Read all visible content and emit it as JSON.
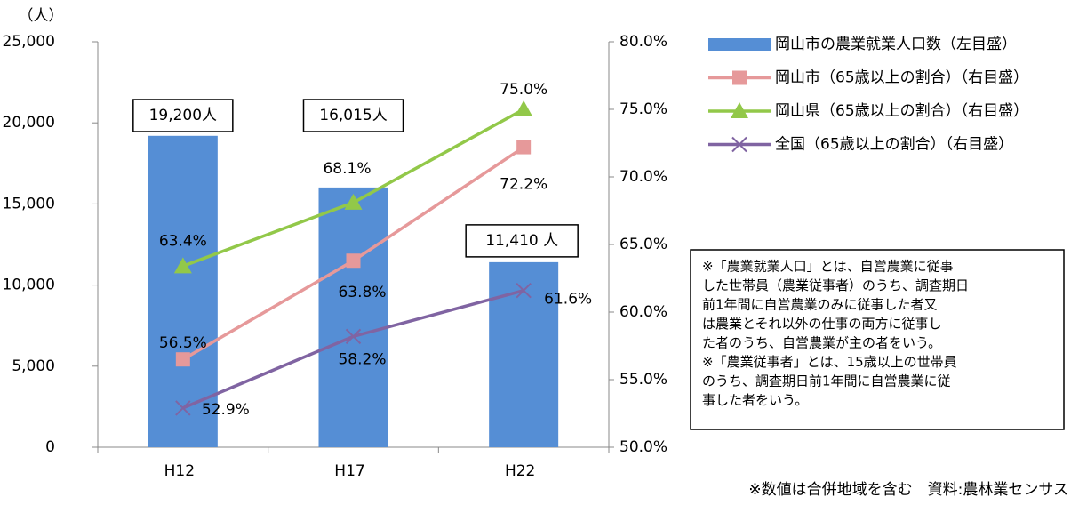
{
  "chart_data": {
    "type": "bar",
    "y_label": "（人）",
    "categories": [
      "H12",
      "H17",
      "H22"
    ],
    "series": [
      {
        "name": "岡山市の農業就業人口数（左目盛）",
        "type": "bar",
        "color": "#558ed5",
        "values": [
          19200,
          16015,
          11410
        ],
        "value_labels": [
          "19,200人",
          "16,015人",
          "11,410 人"
        ]
      },
      {
        "name": "岡山市（65歳以上の割合）（右目盛）",
        "type": "line",
        "axis": "y2",
        "marker": "square",
        "color": "#e6999a",
        "values": [
          56.5,
          63.8,
          72.2
        ],
        "value_labels": [
          "56.5%",
          "63.8%",
          "72.2%"
        ]
      },
      {
        "name": "岡山県（65歳以上の割合）（右目盛）",
        "type": "line",
        "axis": "y2",
        "marker": "triangle",
        "color": "#92c849",
        "values": [
          63.4,
          68.1,
          75.0
        ],
        "value_labels": [
          "63.4%",
          "68.1%",
          "75.0%"
        ]
      },
      {
        "name": "全国（65歳以上の割合）（右目盛）",
        "type": "line",
        "axis": "y2",
        "marker": "x",
        "color": "#8064a2",
        "values": [
          52.9,
          58.2,
          61.6
        ],
        "value_labels": [
          "52.9%",
          "58.2%",
          "61.6%"
        ]
      }
    ],
    "ylim": [
      0,
      25000
    ],
    "yticks": [
      0,
      {
        "value": 5000,
        "label": "5,000"
      },
      {
        "value": 10000,
        "label": "10,000"
      },
      {
        "value": 15000,
        "label": "15,000"
      },
      {
        "value": 20000,
        "label": "20,000"
      },
      {
        "value": 25000,
        "label": "25,000"
      }
    ],
    "y2lim": [
      50,
      80
    ],
    "y2ticks": [
      {
        "value": 50,
        "label": "50.0%"
      },
      {
        "value": 55,
        "label": "55.0%"
      },
      {
        "value": 60,
        "label": "60.0%"
      },
      {
        "value": 65,
        "label": "65.0%"
      },
      {
        "value": 70,
        "label": "70.0%"
      },
      {
        "value": 75,
        "label": "75.0%"
      },
      {
        "value": 80,
        "label": "80.0%"
      }
    ],
    "note": [
      "※「農業就業人口」とは、自営農業に従事",
      "した世帯員（農業従事者）のうち、調査期日",
      "前1年間に自営農業のみに従事した者又",
      "は農業とそれ以外の仕事の両方に従事し",
      "た者のうち、自営農業が主の者をいう。",
      "※「農業従事者」とは、15歳以上の世帯員",
      "のうち、調査期日前1年間に自営農業に従",
      "事した者をいう。"
    ],
    "source": "※数値は合併地域を含む　資料:農林業センサス"
  }
}
